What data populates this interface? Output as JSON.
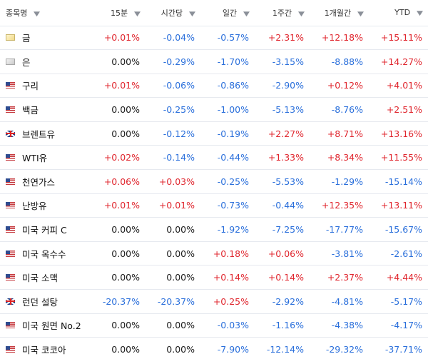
{
  "headers": [
    "종목명",
    "15분",
    "시간당",
    "일간",
    "1주간",
    "1개월간",
    "YTD"
  ],
  "colors": {
    "positive": "#e0262e",
    "negative": "#2a6fdb",
    "neutral": "#1a1a1a"
  },
  "rows": [
    {
      "flag": "gold-icon",
      "name": "금",
      "values": [
        "+0.01%",
        "-0.04%",
        "-0.57%",
        "+2.31%",
        "+12.18%",
        "+15.11%"
      ]
    },
    {
      "flag": "silver-icon",
      "name": "은",
      "values": [
        "0.00%",
        "-0.29%",
        "-1.70%",
        "-3.15%",
        "-8.88%",
        "+14.27%"
      ]
    },
    {
      "flag": "us-flag-icon",
      "name": "구리",
      "values": [
        "+0.01%",
        "-0.06%",
        "-0.86%",
        "-2.90%",
        "+0.12%",
        "+4.01%"
      ]
    },
    {
      "flag": "us-flag-icon",
      "name": "백금",
      "values": [
        "0.00%",
        "-0.25%",
        "-1.00%",
        "-5.13%",
        "-8.76%",
        "+2.51%"
      ]
    },
    {
      "flag": "uk-flag-icon",
      "name": "브렌트유",
      "values": [
        "0.00%",
        "-0.12%",
        "-0.19%",
        "+2.27%",
        "+8.71%",
        "+13.16%"
      ]
    },
    {
      "flag": "us-flag-icon",
      "name": "WTI유",
      "values": [
        "+0.02%",
        "-0.14%",
        "-0.44%",
        "+1.33%",
        "+8.34%",
        "+11.55%"
      ]
    },
    {
      "flag": "us-flag-icon",
      "name": "천연가스",
      "values": [
        "+0.06%",
        "+0.03%",
        "-0.25%",
        "-5.53%",
        "-1.29%",
        "-15.14%"
      ]
    },
    {
      "flag": "us-flag-icon",
      "name": "난방유",
      "values": [
        "+0.01%",
        "+0.01%",
        "-0.73%",
        "-0.44%",
        "+12.35%",
        "+13.11%"
      ]
    },
    {
      "flag": "us-flag-icon",
      "name": "미국 커피 C",
      "values": [
        "0.00%",
        "0.00%",
        "-1.92%",
        "-7.25%",
        "-17.77%",
        "-15.67%"
      ]
    },
    {
      "flag": "us-flag-icon",
      "name": "미국 옥수수",
      "values": [
        "0.00%",
        "0.00%",
        "+0.18%",
        "+0.06%",
        "-3.81%",
        "-2.61%"
      ]
    },
    {
      "flag": "us-flag-icon",
      "name": "미국 소맥",
      "values": [
        "0.00%",
        "0.00%",
        "+0.14%",
        "+0.14%",
        "+2.37%",
        "+4.44%"
      ]
    },
    {
      "flag": "uk-flag-icon",
      "name": "런던 설탕",
      "values": [
        "-20.37%",
        "-20.37%",
        "+0.25%",
        "-2.92%",
        "-4.81%",
        "-5.17%"
      ]
    },
    {
      "flag": "us-flag-icon",
      "name": "미국 원면 No.2",
      "values": [
        "0.00%",
        "0.00%",
        "-0.03%",
        "-1.16%",
        "-4.38%",
        "-4.17%"
      ]
    },
    {
      "flag": "us-flag-icon",
      "name": "미국 코코아",
      "values": [
        "0.00%",
        "0.00%",
        "-7.90%",
        "-12.14%",
        "-29.32%",
        "-37.71%"
      ]
    }
  ]
}
